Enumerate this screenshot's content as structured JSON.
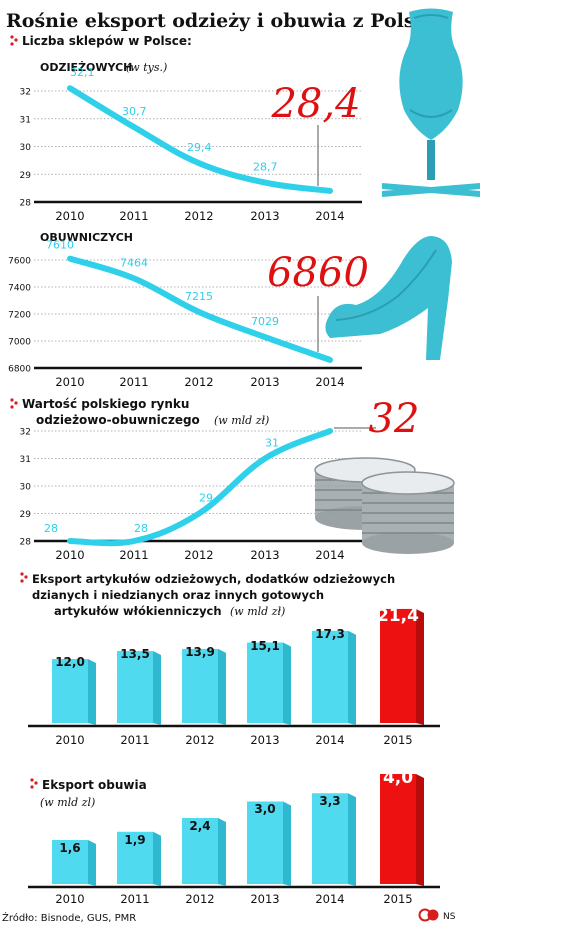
{
  "title": "Rośnie eksport odzieży i obuwia z Polski",
  "source": "Źródło: Bisnode, GUS, PMR",
  "logo_text": "NS",
  "colors": {
    "line": "#2ed0ea",
    "bar": "#4fdaf0",
    "bar_highlight": "#ee1111",
    "highlight_text": "#dd1111",
    "marker": "#d81b1b",
    "axis": "#111111",
    "grid": "#999999",
    "illustration": "#3cbfd2",
    "illustration_dark": "#2a9fb4"
  },
  "sections": {
    "stores_heading": "Liczba sklepów w Polsce:",
    "market_heading_1": "Wartość polskiego rynku",
    "market_heading_2": "odzieżowo-obuwniczego",
    "market_unit": "(w mld zł)",
    "export_clothes_heading_1": "Eksport artykułów odzieżowych, dodatków odzieżowych",
    "export_clothes_heading_2": "dzianych i niedzianych oraz innych gotowych",
    "export_clothes_heading_3": "artykułów włókienniczych",
    "export_clothes_unit": "(w mld zł)",
    "export_shoes_heading": "Eksport obuwia",
    "export_shoes_unit": "(w mld zl)"
  },
  "chart_data": [
    {
      "type": "line",
      "label": "odzieżowych",
      "unit": "(w tys.)",
      "x": [
        "2010",
        "2011",
        "2012",
        "2013",
        "2014"
      ],
      "series": [
        {
          "values": [
            32.1,
            30.7,
            29.4,
            28.7,
            28.4
          ]
        }
      ],
      "data_labels": [
        "32,1",
        "30,7",
        "29,4",
        "28,7"
      ],
      "highlight_label": "28,4",
      "yticks": [
        "28",
        "29",
        "30",
        "31",
        "32"
      ],
      "ylim": [
        28,
        32
      ]
    },
    {
      "type": "line",
      "label": "obuwniczych",
      "x": [
        "2010",
        "2011",
        "2012",
        "2013",
        "2014"
      ],
      "series": [
        {
          "values": [
            7610,
            7464,
            7215,
            7029,
            6860
          ]
        }
      ],
      "data_labels": [
        "7610",
        "7464",
        "7215",
        "7029"
      ],
      "highlight_label": "6860",
      "yticks": [
        "6800",
        "7000",
        "7200",
        "7400",
        "7600"
      ],
      "ylim": [
        6800,
        7600
      ]
    },
    {
      "type": "line",
      "x": [
        "2010",
        "2011",
        "2012",
        "2013",
        "2014"
      ],
      "series": [
        {
          "values": [
            28,
            28,
            29,
            31,
            32
          ]
        }
      ],
      "data_labels": [
        "28",
        "28",
        "29",
        "31"
      ],
      "highlight_label": "32",
      "yticks": [
        "28",
        "29",
        "30",
        "31",
        "32"
      ],
      "ylim": [
        28,
        32
      ]
    },
    {
      "type": "bar",
      "categories": [
        "2010",
        "2011",
        "2012",
        "2013",
        "2014",
        "2015"
      ],
      "values": [
        12.0,
        13.5,
        13.9,
        15.1,
        17.3,
        21.4
      ],
      "value_labels": [
        "12,0",
        "13,5",
        "13,9",
        "15,1",
        "17,3",
        "21,4"
      ],
      "highlight_index": 5
    },
    {
      "type": "bar",
      "categories": [
        "2010",
        "2011",
        "2012",
        "2013",
        "2014",
        "2015"
      ],
      "values": [
        1.6,
        1.9,
        2.4,
        3.0,
        3.3,
        4.0
      ],
      "value_labels": [
        "1,6",
        "1,9",
        "2,4",
        "3,0",
        "3,3",
        "4,0"
      ],
      "highlight_index": 5
    }
  ]
}
